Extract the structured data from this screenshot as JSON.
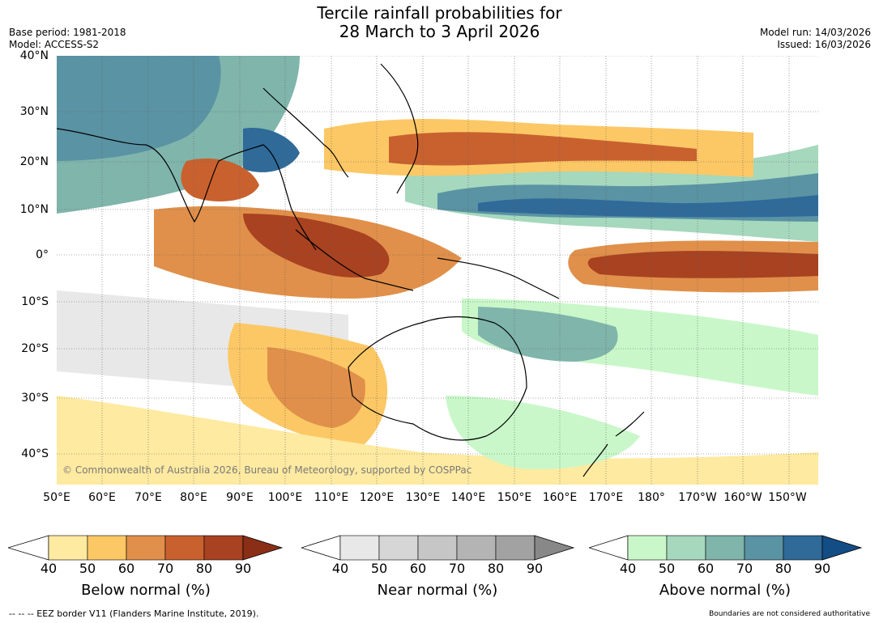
{
  "title": {
    "line1": "Tercile rainfall probabilities for",
    "line2": "28 March to 3 April 2026"
  },
  "meta": {
    "base_period": "Base period: 1981-2018",
    "model": "Model: ACCESS-S2",
    "model_run": "Model run: 14/03/2026",
    "issued": "Issued: 16/03/2026"
  },
  "map": {
    "lat_ticks": [
      "40°N",
      "30°N",
      "20°N",
      "10°N",
      "0°",
      "10°S",
      "20°S",
      "30°S",
      "40°S"
    ],
    "lon_ticks": [
      "50°E",
      "60°E",
      "70°E",
      "80°E",
      "90°E",
      "100°E",
      "110°E",
      "120°E",
      "130°E",
      "140°E",
      "150°E",
      "160°E",
      "170°E",
      "180°",
      "170°W",
      "160°W",
      "150°W"
    ],
    "copyright": "© Commonwealth of Australia 2026, Bureau of Meteorology, supported by COSPPac",
    "colors": {
      "ocean_bg": "#ffffff",
      "coastline": "#000000"
    }
  },
  "colorbars": [
    {
      "name": "Below normal (%)",
      "ticks": [
        "40",
        "50",
        "60",
        "70",
        "80",
        "90"
      ],
      "colors": [
        "#ffffff",
        "#feeaa0",
        "#fcc865",
        "#e0904a",
        "#c9612f",
        "#a84221",
        "#8b2e16"
      ]
    },
    {
      "name": "Near normal (%)",
      "ticks": [
        "40",
        "50",
        "60",
        "70",
        "80",
        "90"
      ],
      "colors": [
        "#ffffff",
        "#e8e8e8",
        "#d6d6d6",
        "#c6c6c6",
        "#b4b4b4",
        "#a2a2a2",
        "#888888"
      ]
    },
    {
      "name": "Above normal (%)",
      "ticks": [
        "40",
        "50",
        "60",
        "70",
        "80",
        "90"
      ],
      "colors": [
        "#ffffff",
        "#c9f7c9",
        "#a5d8bd",
        "#7fb5ab",
        "#5a93a3",
        "#2f6a99",
        "#134d85"
      ]
    }
  ],
  "footer": {
    "eez": "--  --  -- EEZ border V11 (Flanders Marine Institute, 2019).",
    "boundaries": "Boundaries are not considered authoritative"
  }
}
